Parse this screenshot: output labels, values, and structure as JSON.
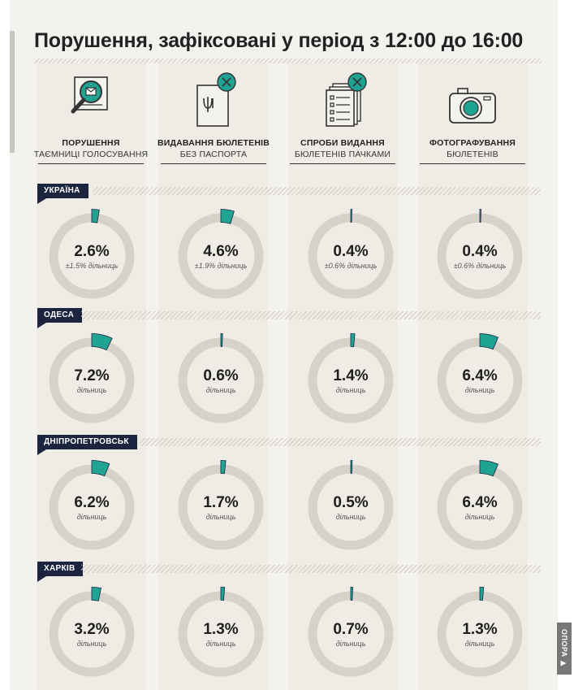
{
  "title": "Порушення, зафіксовані у період з 12:00 до 16:00",
  "brand": "ОПОРА ▶",
  "colors": {
    "accent": "#1fa392",
    "ring": "#d6d2ca",
    "region_label": "#1c2540"
  },
  "categories": [
    {
      "icon": "magnifier-ballot-icon",
      "main": "ПОРУШЕННЯ",
      "sub": "ТАЄМНИЦІ ГОЛОСУВАННЯ"
    },
    {
      "icon": "passport-crossed-icon",
      "main": "ВИДАВАННЯ БЮЛЕТЕНІВ",
      "sub": "БЕЗ ПАСПОРТА"
    },
    {
      "icon": "ballot-stack-crossed-icon",
      "main": "СПРОБИ ВИДАННЯ",
      "sub": "БЮЛЕТЕНІВ ПАЧКАМИ"
    },
    {
      "icon": "camera-icon",
      "main": "ФОТОГРАФУВАННЯ",
      "sub": "БЮЛЕТЕНІВ"
    }
  ],
  "chart_data": {
    "type": "pie",
    "unit": "%",
    "categories": [
      "ПОРУШЕННЯ ТАЄМНИЦІ ГОЛОСУВАННЯ",
      "ВИДАВАННЯ БЮЛЕТЕНІВ БЕЗ ПАСПОРТА",
      "СПРОБИ ВИДАННЯ БЮЛЕТЕНІВ ПАЧКАМИ",
      "ФОТОГРАФУВАННЯ БЮЛЕТЕНІВ"
    ],
    "regions": [
      {
        "name": "УКРАЇНА",
        "values": [
          2.6,
          4.6,
          0.4,
          0.4
        ],
        "labels": [
          "2.6%",
          "4.6%",
          "0.4%",
          "0.4%"
        ],
        "notes": [
          "±1.5% дільниць",
          "±1.9% дільниць",
          "±0.6% дільниць",
          "±0.6% дільниць"
        ]
      },
      {
        "name": "ОДЕСА",
        "values": [
          7.2,
          0.6,
          1.4,
          6.4
        ],
        "labels": [
          "7.2%",
          "0.6%",
          "1.4%",
          "6.4%"
        ],
        "notes": [
          "дільниць",
          "дільниць",
          "дільниць",
          "дільниць"
        ]
      },
      {
        "name": "ДНІПРОПЕТРОВСЬК",
        "values": [
          6.2,
          1.7,
          0.5,
          6.4
        ],
        "labels": [
          "6.2%",
          "1.7%",
          "0.5%",
          "6.4%"
        ],
        "notes": [
          "дільниць",
          "дільниць",
          "дільниць",
          "дільниць"
        ]
      },
      {
        "name": "ХАРКІВ",
        "values": [
          3.2,
          1.3,
          0.7,
          1.3
        ],
        "labels": [
          "3.2%",
          "1.3%",
          "0.7%",
          "1.3%"
        ],
        "notes": [
          "дільниць",
          "дільниць",
          "дільниць",
          "дільниць"
        ]
      }
    ]
  }
}
